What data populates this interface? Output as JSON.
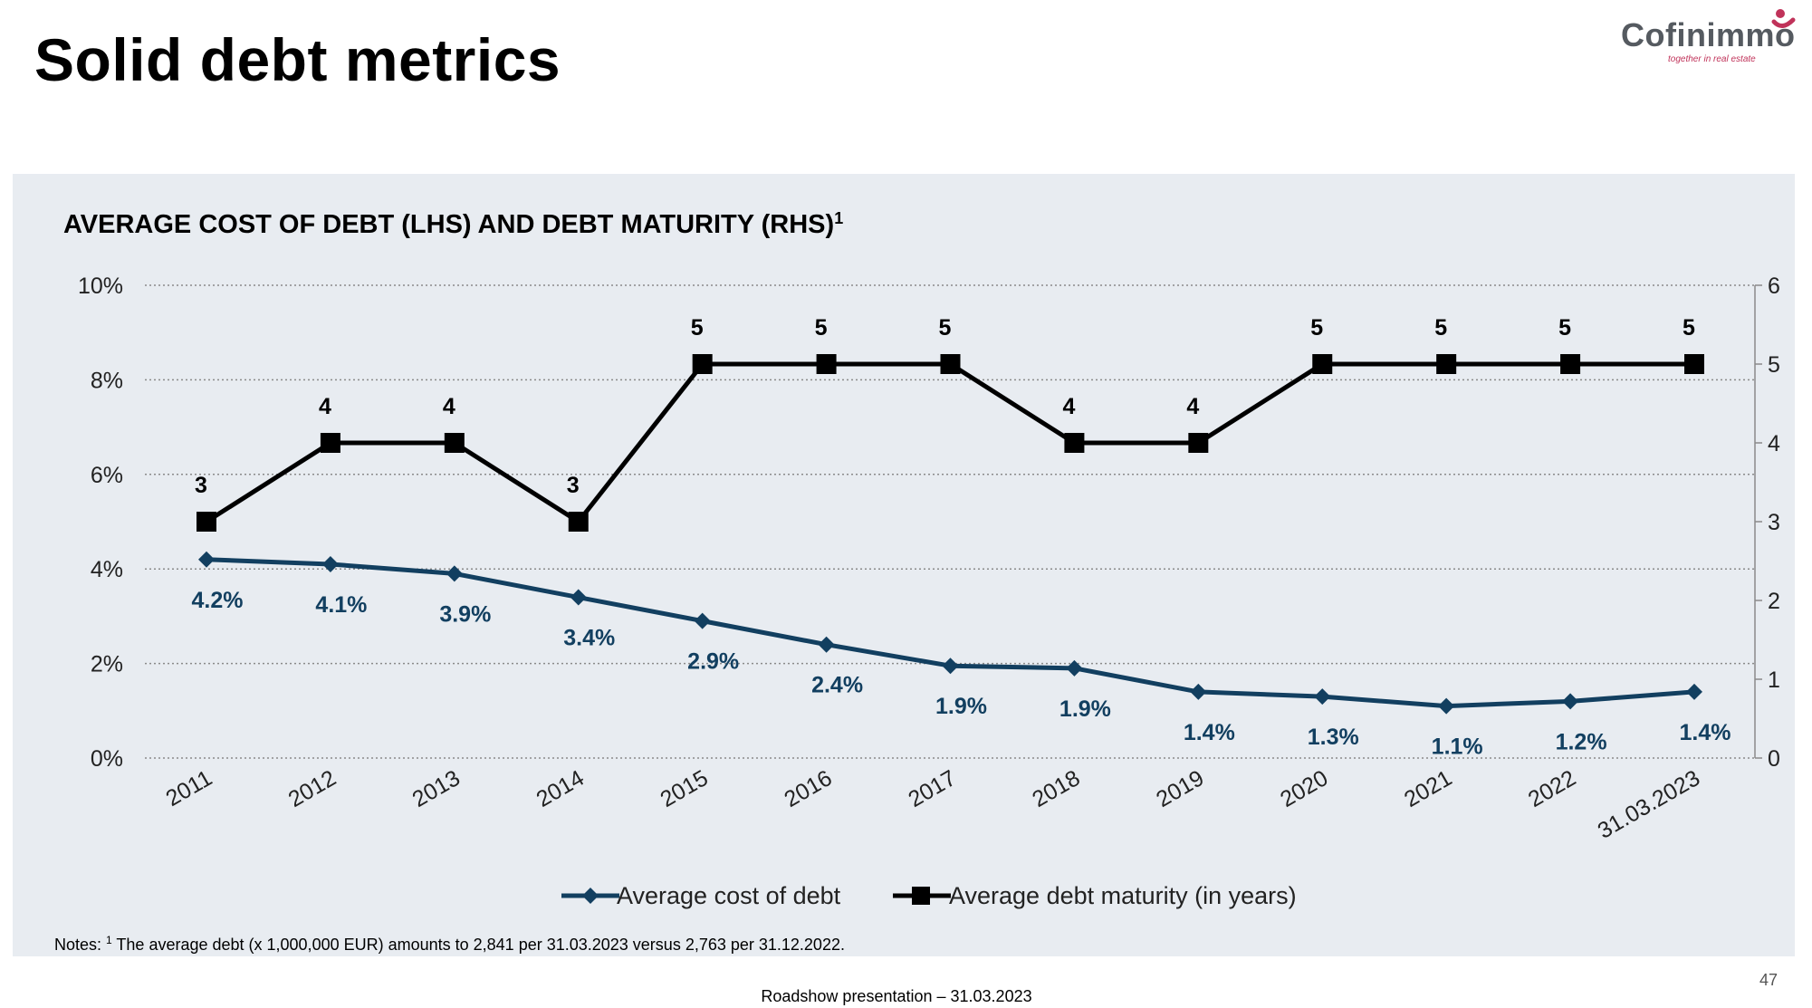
{
  "page": {
    "title": "Solid debt metrics",
    "logo_name": "Cofinimmo",
    "logo_tagline": "together in real estate",
    "note_prefix": "Notes:",
    "note_marker": "1",
    "note_text": "The average debt (x 1,000,000 EUR) amounts to 2,841 per 31.03.2023 versus 2,763 per 31.12.2022.",
    "footer": "Roadshow presentation – 31.03.2023",
    "page_number": "47",
    "colors": {
      "cost_series": "#123f60",
      "maturity_series": "#000000",
      "panel_bg": "#e8ecf1",
      "brand_accent": "#c0335a"
    }
  },
  "chart_data": {
    "type": "line",
    "title": "AVERAGE COST OF DEBT (LHS) AND DEBT MATURITY (RHS)",
    "title_superscript": "1",
    "categories": [
      "2011",
      "2012",
      "2013",
      "2014",
      "2015",
      "2016",
      "2017",
      "2018",
      "2019",
      "2020",
      "2021",
      "2022",
      "31.03.2023"
    ],
    "series": [
      {
        "name": "Average cost of debt",
        "axis": "left",
        "marker": "diamond",
        "values": [
          4.2,
          4.1,
          3.9,
          3.4,
          2.9,
          2.4,
          1.95,
          1.9,
          1.4,
          1.3,
          1.1,
          1.2,
          1.4
        ],
        "labels": [
          "4.2%",
          "4.1%",
          "3.9%",
          "3.4%",
          "2.9%",
          "2.4%",
          "1.9%",
          "1.9%",
          "1.4%",
          "1.3%",
          "1.1%",
          "1.2%",
          "1.4%"
        ]
      },
      {
        "name": "Average debt maturity (in years)",
        "axis": "right",
        "marker": "square",
        "values": [
          3,
          4,
          4,
          3,
          5,
          5,
          5,
          4,
          4,
          5,
          5,
          5,
          5
        ],
        "labels": [
          "3",
          "4",
          "4",
          "3",
          "5",
          "5",
          "5",
          "4",
          "4",
          "5",
          "5",
          "5",
          "5"
        ]
      }
    ],
    "left_axis": {
      "min": 0,
      "max": 10,
      "ticks": [
        "0%",
        "2%",
        "4%",
        "6%",
        "8%",
        "10%"
      ]
    },
    "right_axis": {
      "min": 0,
      "max": 6,
      "ticks": [
        "0",
        "1",
        "2",
        "3",
        "4",
        "5",
        "6"
      ]
    },
    "grid": "horizontal-dotted",
    "legend_position": "bottom"
  }
}
